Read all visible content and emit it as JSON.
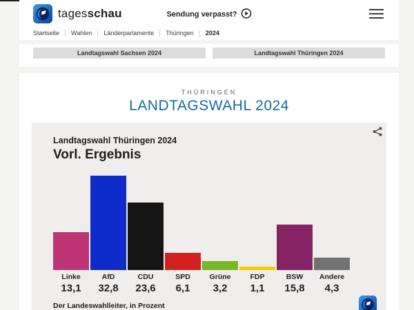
{
  "header": {
    "brand_regular": "tages",
    "brand_bold": "schau",
    "sendung_verpasst": "Sendung verpasst?"
  },
  "breadcrumb": {
    "items": [
      "Startseite",
      "Wahlen",
      "Länderparlamente",
      "Thüringen",
      "2024"
    ],
    "active": "2024"
  },
  "tabs": [
    {
      "label": "Landtagswahl Sachsen 2024"
    },
    {
      "label": "Landtagswahl Thüringen 2024"
    }
  ],
  "page": {
    "kicker": "THÜRINGEN",
    "title": "LANDTAGSWAHL 2024",
    "title_color": "#15699f"
  },
  "chart_card": {
    "subtitle": "Landtagswahl Thüringen 2024",
    "title": "Vorl. Ergebnis",
    "source": "Der Landeswahlleiter, in Prozent"
  },
  "chart_data": {
    "type": "bar",
    "title": "Landtagswahl Thüringen 2024 – Vorl. Ergebnis",
    "categories": [
      "Linke",
      "AfD",
      "CDU",
      "SPD",
      "Grüne",
      "FDP",
      "BSW",
      "Andere"
    ],
    "values": [
      13.1,
      32.8,
      23.6,
      6.1,
      3.2,
      1.1,
      15.8,
      4.3
    ],
    "value_labels": [
      "13,1",
      "32,8",
      "23,6",
      "6,1",
      "3,2",
      "1,1",
      "15,8",
      "4,3"
    ],
    "colors": [
      "#be3374",
      "#0c2bc8",
      "#151515",
      "#d3221e",
      "#77b825",
      "#f8ca00",
      "#862364",
      "#727272"
    ],
    "unit": "Prozent",
    "ylabel": "",
    "xlabel": "",
    "ylim": [
      0,
      35
    ],
    "grid": false,
    "legend": "none",
    "source": "Der Landeswahlleiter, in Prozent"
  }
}
